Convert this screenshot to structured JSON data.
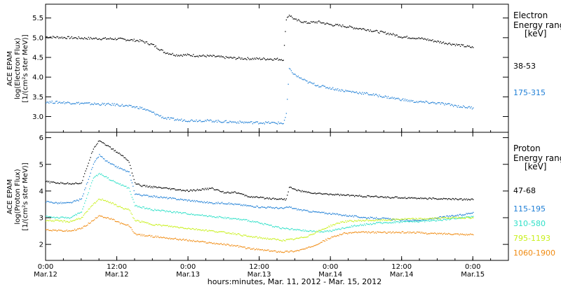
{
  "colors": {
    "background": "#ffffff",
    "axis": "#000000",
    "e_38_53": "#000000",
    "e_175_315": "#1f7fd6",
    "p_47_68": "#000000",
    "p_115_195": "#1f7fd6",
    "p_310_580": "#2fe0c8",
    "p_795_1193": "#c8f01a",
    "p_1060_1900": "#f08a10"
  },
  "x_axis": {
    "title": "hours:minutes, Mar. 11, 2012 - Mar. 15, 2012",
    "range_hours": [
      0,
      78
    ],
    "ticks": [
      {
        "hours": 0,
        "time": "0:00",
        "date": "Mar.12"
      },
      {
        "hours": 12,
        "time": "12:00",
        "date": "Mar.12"
      },
      {
        "hours": 24,
        "time": "0:00",
        "date": "Mar.13"
      },
      {
        "hours": 36,
        "time": "12:00",
        "date": "Mar.13"
      },
      {
        "hours": 48,
        "time": "0:00",
        "date": "Mar.14"
      },
      {
        "hours": 60,
        "time": "12:00",
        "date": "Mar.14"
      },
      {
        "hours": 72,
        "time": "0:00",
        "date": "Mar.15"
      }
    ]
  },
  "chart_data": [
    {
      "type": "scatter",
      "panel": "electron",
      "ylabel_lines": [
        "ACE EPAM",
        "log(Electron Flux)",
        "[1/(cm²s ster MeV)]"
      ],
      "ylim": [
        2.6,
        5.85
      ],
      "yticks": [
        "3.0",
        "3.5",
        "4.0",
        "4.5",
        "5.0",
        "5.5"
      ],
      "legend_title_lines": [
        "Electron",
        "Energy ranges",
        "[keV]"
      ],
      "series": [
        {
          "name": "38-53",
          "color_key": "e_38_53",
          "x": [
            0,
            4,
            8,
            12,
            16,
            18,
            20,
            22,
            24,
            26,
            28,
            30,
            32,
            34,
            38,
            40,
            40.5,
            41,
            42,
            44,
            46,
            48,
            50,
            52,
            54,
            56,
            58,
            60,
            62,
            64,
            66,
            68,
            70,
            72
          ],
          "y": [
            5.02,
            5.0,
            4.98,
            4.97,
            4.92,
            4.82,
            4.63,
            4.56,
            4.56,
            4.54,
            4.53,
            4.5,
            4.48,
            4.47,
            4.46,
            4.45,
            5.48,
            5.58,
            5.45,
            5.38,
            5.4,
            5.33,
            5.3,
            5.25,
            5.21,
            5.15,
            5.1,
            5.02,
            5.0,
            4.96,
            4.9,
            4.85,
            4.8,
            4.75
          ]
        },
        {
          "name": "175-315",
          "color_key": "e_175_315",
          "x": [
            0,
            4,
            8,
            12,
            16,
            18,
            20,
            22,
            24,
            26,
            28,
            30,
            32,
            34,
            38,
            40,
            40.5,
            41,
            42,
            44,
            46,
            48,
            50,
            52,
            54,
            56,
            58,
            60,
            62,
            64,
            66,
            68,
            70,
            72
          ],
          "y": [
            3.37,
            3.35,
            3.32,
            3.3,
            3.22,
            3.1,
            2.96,
            2.92,
            2.9,
            2.9,
            2.89,
            2.87,
            2.86,
            2.85,
            2.84,
            2.83,
            3.05,
            4.2,
            4.05,
            3.88,
            3.78,
            3.72,
            3.66,
            3.62,
            3.58,
            3.53,
            3.48,
            3.43,
            3.38,
            3.36,
            3.34,
            3.3,
            3.25,
            3.22
          ]
        }
      ]
    },
    {
      "type": "scatter",
      "panel": "proton",
      "ylabel_lines": [
        "ACE EPAM",
        "log(Proton Flux)",
        "[1/(cm²s ster MeV)]"
      ],
      "ylim": [
        1.4,
        6.2
      ],
      "yticks": [
        "2",
        "3",
        "4",
        "5",
        "6"
      ],
      "legend_title_lines": [
        "Proton",
        "Energy ranges",
        "[keV]"
      ],
      "series": [
        {
          "name": "47-68",
          "color_key": "p_47_68",
          "x": [
            0,
            2,
            4,
            6,
            8,
            9,
            10,
            11,
            12,
            13,
            14,
            15,
            16,
            18,
            20,
            22,
            24,
            26,
            28,
            30,
            32,
            34,
            36,
            38,
            40,
            40.5,
            41,
            42,
            44,
            46,
            48,
            50,
            52,
            54,
            56,
            58,
            60,
            62,
            64,
            66,
            68,
            70,
            72
          ],
          "y": [
            4.35,
            4.3,
            4.28,
            4.3,
            5.6,
            5.9,
            5.75,
            5.6,
            5.45,
            5.3,
            5.1,
            4.3,
            4.2,
            4.15,
            4.1,
            4.05,
            4.0,
            4.05,
            4.1,
            3.95,
            3.95,
            3.8,
            3.75,
            3.72,
            3.7,
            3.68,
            4.15,
            4.05,
            3.95,
            3.9,
            3.88,
            3.85,
            3.82,
            3.8,
            3.78,
            3.76,
            3.75,
            3.74,
            3.72,
            3.71,
            3.7,
            3.69,
            3.68
          ]
        },
        {
          "name": "115-195",
          "color_key": "p_115_195",
          "x": [
            0,
            2,
            4,
            6,
            8,
            9,
            10,
            11,
            12,
            13,
            14,
            15,
            16,
            18,
            20,
            22,
            24,
            26,
            28,
            30,
            32,
            34,
            36,
            38,
            40,
            41,
            42,
            44,
            46,
            48,
            50,
            52,
            54,
            56,
            58,
            60,
            62,
            64,
            66,
            68,
            70,
            72
          ],
          "y": [
            3.6,
            3.55,
            3.55,
            3.7,
            5.0,
            5.35,
            5.15,
            5.0,
            4.9,
            4.8,
            4.7,
            3.9,
            3.85,
            3.8,
            3.75,
            3.7,
            3.65,
            3.6,
            3.55,
            3.55,
            3.5,
            3.45,
            3.4,
            3.38,
            3.35,
            3.4,
            3.33,
            3.25,
            3.2,
            3.15,
            3.1,
            3.05,
            3.0,
            2.98,
            2.95,
            2.9,
            2.9,
            2.92,
            3.0,
            3.05,
            3.1,
            3.2
          ]
        },
        {
          "name": "310-580",
          "color_key": "p_310_580",
          "x": [
            0,
            2,
            4,
            6,
            8,
            9,
            10,
            11,
            12,
            13,
            14,
            15,
            16,
            18,
            20,
            22,
            24,
            26,
            28,
            30,
            32,
            34,
            36,
            38,
            40,
            42,
            44,
            46,
            48,
            50,
            52,
            54,
            56,
            58,
            60,
            62,
            64,
            66,
            68,
            70,
            72
          ],
          "y": [
            3.05,
            3.0,
            3.0,
            3.2,
            4.5,
            4.65,
            4.55,
            4.4,
            4.3,
            4.2,
            4.1,
            3.45,
            3.4,
            3.3,
            3.25,
            3.2,
            3.15,
            3.1,
            3.05,
            3.0,
            2.95,
            2.9,
            2.8,
            2.7,
            2.6,
            2.55,
            2.5,
            2.48,
            2.5,
            2.6,
            2.7,
            2.75,
            2.8,
            2.82,
            2.85,
            2.85,
            2.88,
            2.9,
            2.95,
            3.0,
            3.05
          ]
        },
        {
          "name": "795-1193",
          "color_key": "p_795_1193",
          "x": [
            0,
            2,
            4,
            6,
            8,
            9,
            10,
            11,
            12,
            13,
            14,
            15,
            16,
            18,
            20,
            22,
            24,
            26,
            28,
            30,
            32,
            34,
            36,
            38,
            40,
            42,
            44,
            46,
            48,
            50,
            52,
            54,
            56,
            58,
            60,
            62,
            64,
            66,
            68,
            70,
            72
          ],
          "y": [
            2.9,
            2.88,
            2.85,
            3.0,
            3.5,
            3.7,
            3.65,
            3.55,
            3.45,
            3.35,
            3.3,
            2.9,
            2.85,
            2.75,
            2.7,
            2.65,
            2.6,
            2.55,
            2.5,
            2.45,
            2.4,
            2.3,
            2.25,
            2.2,
            2.15,
            2.2,
            2.3,
            2.5,
            2.7,
            2.85,
            2.88,
            2.9,
            2.9,
            2.92,
            2.95,
            2.95,
            2.96,
            2.98,
            3.0,
            3.0,
            3.0
          ]
        },
        {
          "name": "1060-1900",
          "color_key": "p_1060_1900",
          "x": [
            0,
            2,
            4,
            6,
            8,
            9,
            10,
            11,
            12,
            13,
            14,
            15,
            16,
            18,
            20,
            22,
            24,
            26,
            28,
            30,
            32,
            34,
            36,
            38,
            40,
            42,
            44,
            46,
            48,
            50,
            52,
            54,
            56,
            58,
            60,
            62,
            64,
            66,
            68,
            70,
            72
          ],
          "y": [
            2.55,
            2.52,
            2.5,
            2.6,
            2.9,
            3.1,
            3.0,
            2.95,
            2.85,
            2.75,
            2.7,
            2.4,
            2.35,
            2.3,
            2.25,
            2.2,
            2.15,
            2.1,
            2.05,
            2.0,
            1.95,
            1.85,
            1.8,
            1.75,
            1.72,
            1.75,
            1.85,
            2.05,
            2.25,
            2.4,
            2.45,
            2.45,
            2.45,
            2.45,
            2.45,
            2.45,
            2.42,
            2.4,
            2.4,
            2.38,
            2.36
          ]
        }
      ]
    }
  ]
}
